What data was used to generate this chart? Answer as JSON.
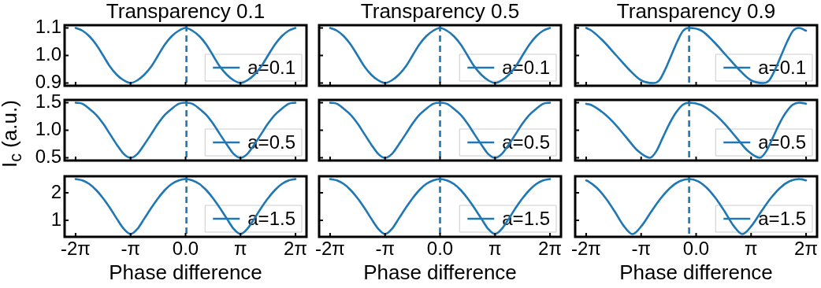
{
  "chart_data": [
    {
      "type": "line",
      "title": "Transparency 0.1",
      "xlim": [
        -6.91,
        6.91
      ],
      "ylim": [
        0.89,
        1.11
      ],
      "xticks": [
        {
          "value": -6.283,
          "label": null
        },
        {
          "value": -3.1416,
          "label": null
        },
        {
          "value": 0,
          "label": null
        },
        {
          "value": 3.1416,
          "label": null
        },
        {
          "value": 6.283,
          "label": null
        }
      ],
      "yticks": [
        0.9,
        {
          "value": 1,
          "label": "1.0"
        },
        1.1
      ],
      "tick_labels": "y",
      "legend": "bottom right",
      "ref_lines": [
        {
          "axis": "x",
          "value": 0.05,
          "color": "#1f77b4",
          "line_style": "dashed"
        }
      ],
      "series": [
        {
          "name": "a=0.1",
          "color": "#1f77b4",
          "x": [
            -6.28,
            -5.89,
            -5.5,
            -5.11,
            -4.71,
            -4.32,
            -3.93,
            -3.53,
            -3.14,
            -2.75,
            -2.36,
            -1.96,
            -1.57,
            -1.18,
            -0.79,
            -0.39,
            0,
            0.39,
            0.79,
            1.18,
            1.57,
            1.96,
            2.36,
            2.75,
            3.14,
            3.53,
            3.93,
            4.32,
            4.71,
            5.11,
            5.5,
            5.89,
            6.28
          ],
          "values": [
            1.1,
            1.09,
            1.07,
            1.04,
            1.0,
            0.96,
            0.93,
            0.91,
            0.9,
            0.91,
            0.93,
            0.96,
            1.0,
            1.04,
            1.07,
            1.09,
            1.1,
            1.09,
            1.07,
            1.04,
            1.0,
            0.96,
            0.93,
            0.91,
            0.9,
            0.91,
            0.93,
            0.96,
            1.0,
            1.04,
            1.07,
            1.09,
            1.1
          ]
        }
      ]
    },
    {
      "type": "line",
      "title": "Transparency 0.5",
      "xlim": [
        -6.91,
        6.91
      ],
      "ylim": [
        0.89,
        1.11
      ],
      "xticks": [
        {
          "value": -6.283,
          "label": null
        },
        {
          "value": -3.1416,
          "label": null
        },
        {
          "value": 0,
          "label": null
        },
        {
          "value": 3.1416,
          "label": null
        },
        {
          "value": 6.283,
          "label": null
        }
      ],
      "yticks": [
        {
          "value": 0.9,
          "label": null
        },
        {
          "value": 1,
          "label": null
        },
        {
          "value": 1.1,
          "label": null
        }
      ],
      "tick_labels": false,
      "legend": "bottom right",
      "ref_lines": [
        {
          "axis": "x",
          "value": 0,
          "color": "#1f77b4",
          "line_style": "dashed"
        }
      ],
      "series": [
        {
          "name": "a=0.1",
          "color": "#1f77b4",
          "x": [
            -6.28,
            -5.89,
            -5.5,
            -5.11,
            -4.71,
            -4.32,
            -3.93,
            -3.53,
            -3.14,
            -2.75,
            -2.36,
            -1.96,
            -1.57,
            -1.18,
            -0.79,
            -0.39,
            0,
            0.39,
            0.79,
            1.18,
            1.57,
            1.96,
            2.36,
            2.75,
            3.14,
            3.53,
            3.93,
            4.32,
            4.71,
            5.11,
            5.5,
            5.89,
            6.28
          ],
          "values": [
            1.1,
            1.09,
            1.07,
            1.04,
            1.0,
            0.96,
            0.93,
            0.91,
            0.9,
            0.91,
            0.93,
            0.96,
            1.0,
            1.04,
            1.07,
            1.09,
            1.1,
            1.09,
            1.07,
            1.04,
            1.0,
            0.96,
            0.93,
            0.91,
            0.9,
            0.91,
            0.93,
            0.96,
            1.0,
            1.04,
            1.07,
            1.09,
            1.1
          ]
        }
      ]
    },
    {
      "type": "line",
      "title": "Transparency 0.9",
      "xlim": [
        -6.91,
        6.91
      ],
      "ylim": [
        0.89,
        1.11
      ],
      "xticks": [
        {
          "value": -6.283,
          "label": null
        },
        {
          "value": -3.1416,
          "label": null
        },
        {
          "value": 0,
          "label": null
        },
        {
          "value": 3.1416,
          "label": null
        },
        {
          "value": 6.283,
          "label": null
        }
      ],
      "yticks": [
        {
          "value": 0.9,
          "label": null
        },
        {
          "value": 1,
          "label": null
        },
        {
          "value": 1.1,
          "label": null
        }
      ],
      "tick_labels": false,
      "legend": "bottom right",
      "ref_lines": [
        {
          "axis": "x",
          "value": -0.4,
          "color": "#1f77b4",
          "line_style": "dashed"
        }
      ],
      "series": [
        {
          "name": "a=0.1",
          "color": "#1f77b4",
          "x": [
            -6.28,
            -5.97,
            -5.27,
            -4.56,
            -3.85,
            -3.15,
            -2.44,
            -2.1,
            -1.76,
            -1.42,
            -1.08,
            -0.74,
            -0.4,
            0.31,
            1.01,
            1.72,
            2.43,
            3.13,
            3.84,
            4.18,
            4.52,
            4.86,
            5.2,
            5.54,
            5.88,
            6.28
          ],
          "values": [
            1.1,
            1.09,
            1.05,
            1.0,
            0.95,
            0.91,
            0.9,
            0.91,
            0.95,
            1.0,
            1.05,
            1.09,
            1.1,
            1.09,
            1.05,
            1.0,
            0.95,
            0.91,
            0.9,
            0.91,
            0.95,
            1.0,
            1.05,
            1.09,
            1.1,
            1.09
          ]
        }
      ]
    },
    {
      "type": "line",
      "ylabel": "I$_{c}$ (a.u.)",
      "xlim": [
        -6.91,
        6.91
      ],
      "ylim": [
        0.45,
        1.55
      ],
      "xticks": [
        {
          "value": -6.283,
          "label": null
        },
        {
          "value": -3.1416,
          "label": null
        },
        {
          "value": 0,
          "label": null
        },
        {
          "value": 3.1416,
          "label": null
        },
        {
          "value": 6.283,
          "label": null
        }
      ],
      "yticks": [
        0.5,
        {
          "value": 1,
          "label": "1.0"
        },
        1.5
      ],
      "tick_labels": "y",
      "legend": "bottom right",
      "ref_lines": [
        {
          "axis": "x",
          "value": 0.05,
          "color": "#1f77b4",
          "line_style": "dashed"
        }
      ],
      "series": [
        {
          "name": "a=0.5",
          "color": "#1f77b4",
          "x": [
            -6.28,
            -5.89,
            -5.5,
            -5.11,
            -4.71,
            -4.32,
            -3.93,
            -3.53,
            -3.14,
            -2.75,
            -2.36,
            -1.96,
            -1.57,
            -1.18,
            -0.79,
            -0.39,
            0,
            0.39,
            0.79,
            1.18,
            1.57,
            1.96,
            2.36,
            2.75,
            3.14,
            3.53,
            3.93,
            4.32,
            4.71,
            5.11,
            5.5,
            5.89,
            6.28
          ],
          "values": [
            1.5,
            1.48,
            1.39,
            1.28,
            1.12,
            0.93,
            0.74,
            0.57,
            0.5,
            0.57,
            0.74,
            0.93,
            1.12,
            1.28,
            1.39,
            1.48,
            1.5,
            1.48,
            1.39,
            1.28,
            1.12,
            0.93,
            0.74,
            0.57,
            0.5,
            0.57,
            0.74,
            0.93,
            1.12,
            1.28,
            1.39,
            1.48,
            1.5
          ]
        }
      ]
    },
    {
      "type": "line",
      "xlim": [
        -6.91,
        6.91
      ],
      "ylim": [
        0.45,
        1.55
      ],
      "xticks": [
        {
          "value": -6.283,
          "label": null
        },
        {
          "value": -3.1416,
          "label": null
        },
        {
          "value": 0,
          "label": null
        },
        {
          "value": 3.1416,
          "label": null
        },
        {
          "value": 6.283,
          "label": null
        }
      ],
      "yticks": [
        {
          "value": 0.5,
          "label": null
        },
        {
          "value": 1,
          "label": null
        },
        {
          "value": 1.5,
          "label": null
        }
      ],
      "tick_labels": false,
      "legend": "bottom right",
      "ref_lines": [
        {
          "axis": "x",
          "value": 0,
          "color": "#1f77b4",
          "line_style": "dashed"
        }
      ],
      "series": [
        {
          "name": "a=0.5",
          "color": "#1f77b4",
          "x": [
            -6.28,
            -5.89,
            -5.5,
            -5.11,
            -4.71,
            -4.32,
            -3.93,
            -3.53,
            -3.14,
            -2.75,
            -2.36,
            -1.96,
            -1.57,
            -1.18,
            -0.79,
            -0.39,
            0,
            0.39,
            0.79,
            1.18,
            1.57,
            1.96,
            2.36,
            2.75,
            3.14,
            3.53,
            3.93,
            4.32,
            4.71,
            5.11,
            5.5,
            5.89,
            6.28
          ],
          "values": [
            1.5,
            1.48,
            1.39,
            1.28,
            1.12,
            0.93,
            0.74,
            0.57,
            0.5,
            0.57,
            0.74,
            0.93,
            1.12,
            1.28,
            1.39,
            1.48,
            1.5,
            1.48,
            1.39,
            1.28,
            1.12,
            0.93,
            0.74,
            0.57,
            0.5,
            0.57,
            0.74,
            0.93,
            1.12,
            1.28,
            1.39,
            1.48,
            1.5
          ]
        }
      ]
    },
    {
      "type": "line",
      "xlim": [
        -6.91,
        6.91
      ],
      "ylim": [
        0.45,
        1.55
      ],
      "xticks": [
        {
          "value": -6.283,
          "label": null
        },
        {
          "value": -3.1416,
          "label": null
        },
        {
          "value": 0,
          "label": null
        },
        {
          "value": 3.1416,
          "label": null
        },
        {
          "value": 6.283,
          "label": null
        }
      ],
      "yticks": [
        {
          "value": 0.5,
          "label": null
        },
        {
          "value": 1,
          "label": null
        },
        {
          "value": 1.5,
          "label": null
        }
      ],
      "tick_labels": false,
      "legend": "bottom right",
      "ref_lines": [
        {
          "axis": "x",
          "value": -0.4,
          "color": "#1f77b4",
          "line_style": "dashed"
        }
      ],
      "series": [
        {
          "name": "a=0.5",
          "color": "#1f77b4",
          "x": [
            -6.28,
            -6.01,
            -5.33,
            -4.66,
            -3.99,
            -3.31,
            -2.64,
            -2.27,
            -1.9,
            -1.52,
            -1.15,
            -0.77,
            -0.4,
            0.27,
            0.95,
            1.62,
            2.29,
            2.97,
            3.64,
            4.01,
            4.39,
            4.76,
            5.13,
            5.51,
            5.88,
            6.28
          ],
          "values": [
            1.48,
            1.46,
            1.32,
            1.12,
            0.87,
            0.62,
            0.5,
            0.62,
            0.87,
            1.12,
            1.32,
            1.46,
            1.5,
            1.46,
            1.32,
            1.12,
            0.87,
            0.62,
            0.5,
            0.62,
            0.87,
            1.12,
            1.32,
            1.46,
            1.5,
            1.48
          ]
        }
      ]
    },
    {
      "type": "line",
      "xlabel": "Phase difference",
      "xlim": [
        -6.91,
        6.91
      ],
      "ylim": [
        0.4,
        2.6
      ],
      "xticks": [
        {
          "value": -6.283,
          "label": "-2π"
        },
        {
          "value": -3.1416,
          "label": "-π"
        },
        {
          "value": 0,
          "label": "0.0"
        },
        {
          "value": 3.1416,
          "label": "π"
        },
        {
          "value": 6.283,
          "label": "2π"
        }
      ],
      "yticks": [
        1,
        2
      ],
      "legend": "bottom right",
      "ref_lines": [
        {
          "axis": "x",
          "value": 0.05,
          "color": "#1f77b4",
          "line_style": "dashed"
        }
      ],
      "series": [
        {
          "name": "a=1.5",
          "color": "#1f77b4",
          "x": [
            -6.28,
            -5.89,
            -5.5,
            -5.11,
            -4.71,
            -4.32,
            -3.93,
            -3.53,
            -3.14,
            -2.75,
            -2.36,
            -1.96,
            -1.57,
            -1.18,
            -0.79,
            -0.39,
            0,
            0.39,
            0.79,
            1.18,
            1.57,
            1.96,
            2.36,
            2.75,
            3.14,
            3.53,
            3.93,
            4.32,
            4.71,
            5.11,
            5.5,
            5.89,
            6.28
          ],
          "values": [
            2.5,
            2.45,
            2.32,
            2.1,
            1.8,
            1.45,
            1.06,
            0.69,
            0.5,
            0.69,
            1.06,
            1.45,
            1.8,
            2.1,
            2.32,
            2.45,
            2.5,
            2.45,
            2.32,
            2.1,
            1.8,
            1.45,
            1.06,
            0.69,
            0.5,
            0.69,
            1.06,
            1.45,
            1.8,
            2.1,
            2.32,
            2.45,
            2.5
          ]
        }
      ]
    },
    {
      "type": "line",
      "xlabel": "Phase difference",
      "xlim": [
        -6.91,
        6.91
      ],
      "ylim": [
        0.4,
        2.6
      ],
      "xticks": [
        {
          "value": -6.283,
          "label": "-2π"
        },
        {
          "value": -3.1416,
          "label": "-π"
        },
        {
          "value": 0,
          "label": "0.0"
        },
        {
          "value": 3.1416,
          "label": "π"
        },
        {
          "value": 6.283,
          "label": "2π"
        }
      ],
      "yticks": [
        {
          "value": 1,
          "label": null
        },
        {
          "value": 2,
          "label": null
        }
      ],
      "tick_labels": "x",
      "legend": "bottom right",
      "ref_lines": [
        {
          "axis": "x",
          "value": 0,
          "color": "#1f77b4",
          "line_style": "dashed"
        }
      ],
      "series": [
        {
          "name": "a=1.5",
          "color": "#1f77b4",
          "x": [
            -6.28,
            -5.89,
            -5.5,
            -5.11,
            -4.71,
            -4.32,
            -3.93,
            -3.53,
            -3.14,
            -2.75,
            -2.36,
            -1.96,
            -1.57,
            -1.18,
            -0.79,
            -0.39,
            0,
            0.39,
            0.79,
            1.18,
            1.57,
            1.96,
            2.36,
            2.75,
            3.14,
            3.53,
            3.93,
            4.32,
            4.71,
            5.11,
            5.5,
            5.89,
            6.28
          ],
          "values": [
            2.5,
            2.45,
            2.32,
            2.1,
            1.8,
            1.45,
            1.06,
            0.69,
            0.5,
            0.69,
            1.06,
            1.45,
            1.8,
            2.1,
            2.32,
            2.45,
            2.5,
            2.45,
            2.32,
            2.1,
            1.8,
            1.45,
            1.06,
            0.69,
            0.5,
            0.69,
            1.06,
            1.45,
            1.8,
            2.1,
            2.32,
            2.45,
            2.5
          ]
        }
      ]
    },
    {
      "type": "line",
      "xlabel": "Phase difference",
      "xlim": [
        -6.91,
        6.91
      ],
      "ylim": [
        0.4,
        2.6
      ],
      "xticks": [
        {
          "value": -6.283,
          "label": "-2π"
        },
        {
          "value": -3.1416,
          "label": "-π"
        },
        {
          "value": 0,
          "label": "0.0"
        },
        {
          "value": 3.1416,
          "label": "π"
        },
        {
          "value": 6.283,
          "label": "2π"
        }
      ],
      "yticks": [
        {
          "value": 1,
          "label": null
        },
        {
          "value": 2,
          "label": null
        }
      ],
      "tick_labels": "x",
      "legend": "bottom right",
      "ref_lines": [
        {
          "axis": "x",
          "value": -0.4,
          "color": "#1f77b4",
          "line_style": "dashed"
        }
      ],
      "series": [
        {
          "name": "a=1.5",
          "color": "#1f77b4",
          "x": [
            -6.28,
            -6.17,
            -5.67,
            -5.16,
            -4.65,
            -4.15,
            -3.64,
            -3.1,
            -2.56,
            -2.02,
            -1.48,
            -0.94,
            -0.4,
            0.11,
            0.61,
            1.12,
            1.63,
            2.13,
            2.64,
            3.18,
            3.72,
            4.26,
            4.8,
            5.34,
            5.88,
            6.28
          ],
          "values": [
            2.45,
            2.42,
            2.18,
            1.8,
            1.32,
            0.81,
            0.5,
            0.81,
            1.32,
            1.8,
            2.18,
            2.42,
            2.5,
            2.42,
            2.18,
            1.8,
            1.32,
            0.81,
            0.5,
            0.81,
            1.32,
            1.8,
            2.18,
            2.42,
            2.5,
            2.45
          ]
        }
      ]
    }
  ]
}
